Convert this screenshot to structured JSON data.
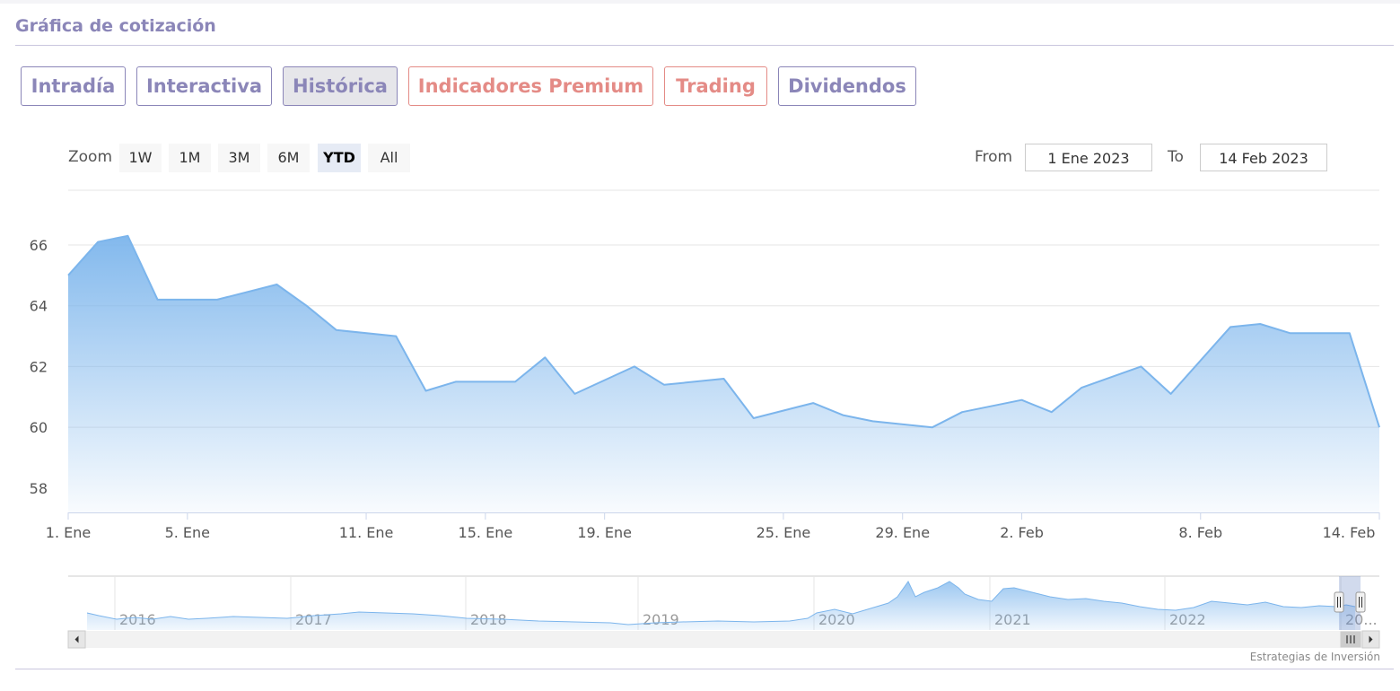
{
  "section": {
    "title": "Gráfica de cotización"
  },
  "tabs": [
    {
      "label": "Intradía",
      "active": false,
      "premium": false
    },
    {
      "label": "Interactiva",
      "active": false,
      "premium": false
    },
    {
      "label": "Histórica",
      "active": true,
      "premium": false
    },
    {
      "label": "Indicadores Premium",
      "active": false,
      "premium": true
    },
    {
      "label": "Trading",
      "active": false,
      "premium": true
    },
    {
      "label": "Dividendos",
      "active": false,
      "premium": false
    }
  ],
  "range_selector": {
    "zoom_label": "Zoom",
    "buttons": [
      "1W",
      "1M",
      "3M",
      "6M",
      "YTD",
      "All"
    ],
    "selected": "YTD",
    "from_label": "From",
    "from_value": "1 Ene 2023",
    "to_label": "To",
    "to_value": "14 Feb 2023"
  },
  "credit": "Estrategias de Inversión",
  "colors": {
    "accent": "#8b86b8",
    "premium": "#e48b86",
    "series_line": "#7cb5ec"
  },
  "chart_data": {
    "type": "area",
    "title": "",
    "xlabel": "",
    "ylabel": "",
    "xlim": [
      "2023-01-01",
      "2023-02-14"
    ],
    "ylim": [
      57.2,
      67.8
    ],
    "y_ticks": [
      58,
      60,
      62,
      64,
      66
    ],
    "x_ticks": [
      {
        "date": "2023-01-01",
        "label": "1. Ene"
      },
      {
        "date": "2023-01-05",
        "label": "5. Ene"
      },
      {
        "date": "2023-01-11",
        "label": "11. Ene"
      },
      {
        "date": "2023-01-15",
        "label": "15. Ene"
      },
      {
        "date": "2023-01-19",
        "label": "19. Ene"
      },
      {
        "date": "2023-01-25",
        "label": "25. Ene"
      },
      {
        "date": "2023-01-29",
        "label": "29. Ene"
      },
      {
        "date": "2023-02-02",
        "label": "2. Feb"
      },
      {
        "date": "2023-02-08",
        "label": "8. Feb"
      },
      {
        "date": "2023-02-14",
        "label": "14. Feb"
      }
    ],
    "grid": true,
    "legend": "none",
    "series": [
      {
        "points": [
          [
            "2023-01-01",
            65.0
          ],
          [
            "2023-01-02",
            66.1
          ],
          [
            "2023-01-03",
            66.3
          ],
          [
            "2023-01-04",
            64.2
          ],
          [
            "2023-01-06",
            64.2
          ],
          [
            "2023-01-08",
            64.7
          ],
          [
            "2023-01-09",
            64.0
          ],
          [
            "2023-01-10",
            63.2
          ],
          [
            "2023-01-12",
            63.0
          ],
          [
            "2023-01-13",
            61.2
          ],
          [
            "2023-01-14",
            61.5
          ],
          [
            "2023-01-16",
            61.5
          ],
          [
            "2023-01-17",
            62.3
          ],
          [
            "2023-01-18",
            61.1
          ],
          [
            "2023-01-20",
            62.0
          ],
          [
            "2023-01-21",
            61.4
          ],
          [
            "2023-01-23",
            61.6
          ],
          [
            "2023-01-24",
            60.3
          ],
          [
            "2023-01-26",
            60.8
          ],
          [
            "2023-01-27",
            60.4
          ],
          [
            "2023-01-28",
            60.2
          ],
          [
            "2023-01-30",
            60.0
          ],
          [
            "2023-01-31",
            60.5
          ],
          [
            "2023-02-02",
            60.9
          ],
          [
            "2023-02-03",
            60.5
          ],
          [
            "2023-02-04",
            61.3
          ],
          [
            "2023-02-06",
            62.0
          ],
          [
            "2023-02-07",
            61.1
          ],
          [
            "2023-02-09",
            63.3
          ],
          [
            "2023-02-10",
            63.4
          ],
          [
            "2023-02-11",
            63.1
          ],
          [
            "2023-02-13",
            63.1
          ],
          [
            "2023-02-14",
            60.0
          ]
        ]
      }
    ],
    "navigator": {
      "year_labels": [
        "2016",
        "2017",
        "2018",
        "2019",
        "2020",
        "2021",
        "2022",
        "20..."
      ],
      "selected_period": "2023"
    }
  }
}
